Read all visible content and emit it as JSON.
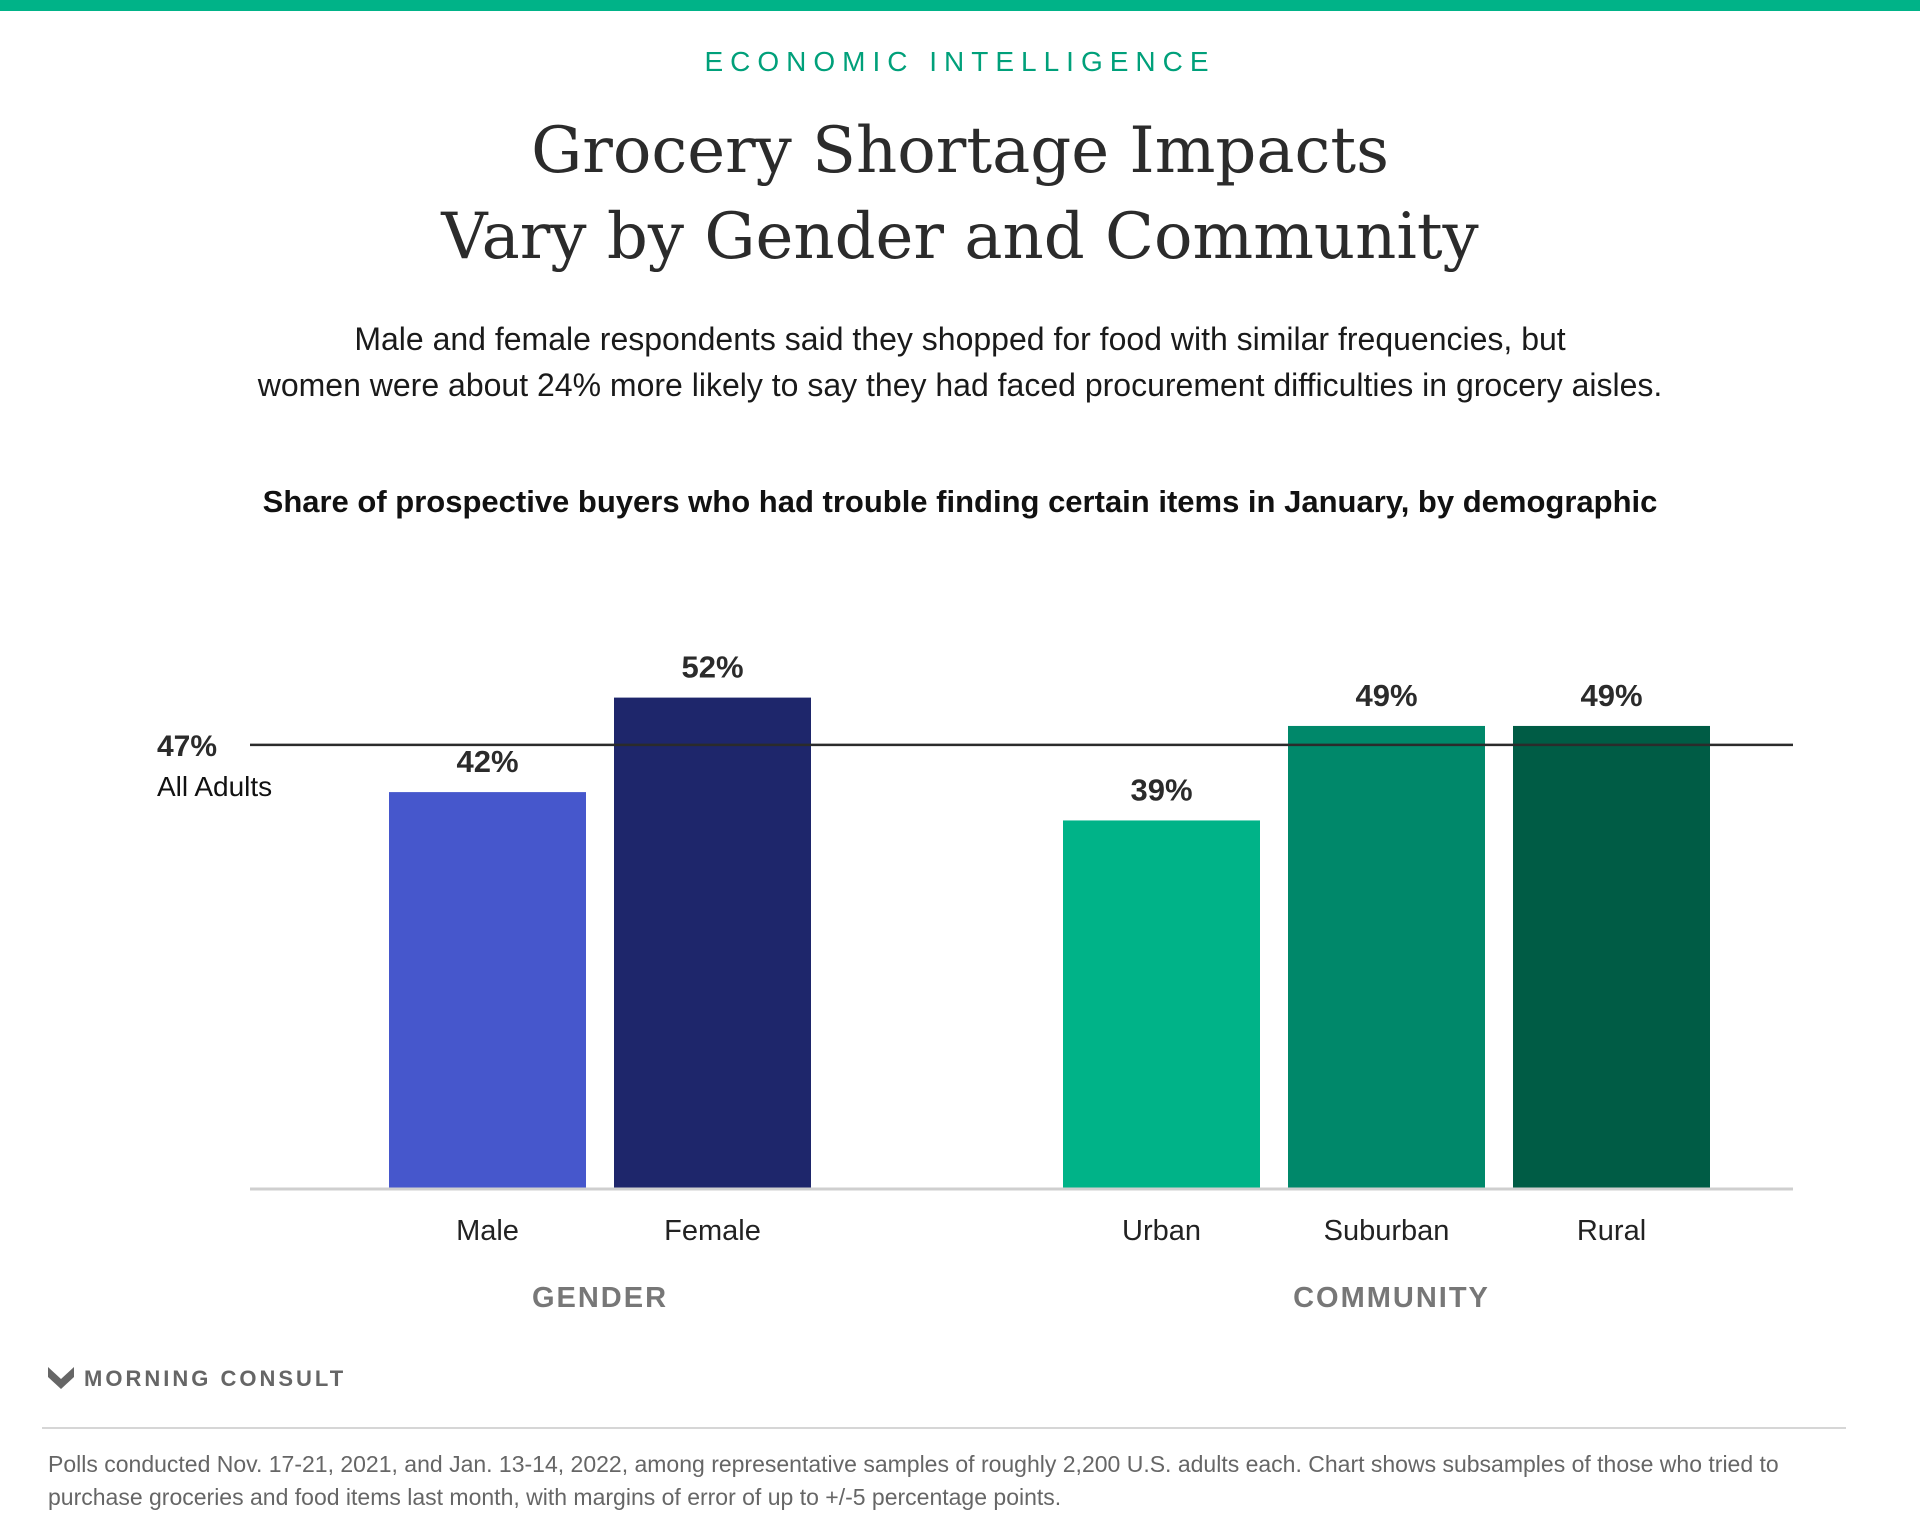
{
  "header": {
    "kicker": "ECONOMIC INTELLIGENCE",
    "title_line1": "Grocery Shortage Impacts",
    "title_line2": "Vary by Gender and Community",
    "subtitle_line1": "Male and female respondents said they shopped for food with similar frequencies, but",
    "subtitle_line2": "women were about 24% more likely to say they had faced procurement difficulties in grocery aisles."
  },
  "colors": {
    "accent": "#00b388",
    "male": "#4657cc",
    "female": "#1e266b",
    "urban": "#00b388",
    "suburban": "#00886a",
    "rural": "#005c45"
  },
  "chart_data": {
    "type": "bar",
    "title": "Share of prospective buyers who had trouble finding certain items in January, by demographic",
    "xlabel": "",
    "ylabel": "",
    "ylim": [
      0,
      100
    ],
    "grid": false,
    "categories": [
      "Male",
      "Female",
      "Urban",
      "Suburban",
      "Rural"
    ],
    "values": [
      42,
      52,
      39,
      49,
      49
    ],
    "value_labels": [
      "42%",
      "52%",
      "39%",
      "49%",
      "49%"
    ],
    "groups": [
      {
        "name": "GENDER",
        "categories": [
          "Male",
          "Female"
        ]
      },
      {
        "name": "COMMUNITY",
        "categories": [
          "Urban",
          "Suburban",
          "Rural"
        ]
      }
    ],
    "reference_line": {
      "value": 47,
      "label": "47%",
      "sublabel": "All Adults"
    }
  },
  "brand": {
    "name": "MORNING CONSULT",
    "icon": "morning-consult-logo-icon"
  },
  "footer": {
    "note": "Polls conducted Nov. 17-21, 2021, and Jan. 13-14, 2022, among representative samples of roughly 2,200 U.S. adults each. Chart shows subsamples of those who tried to purchase groceries and food items last month, with margins of error of up to +/-5 percentage points."
  }
}
